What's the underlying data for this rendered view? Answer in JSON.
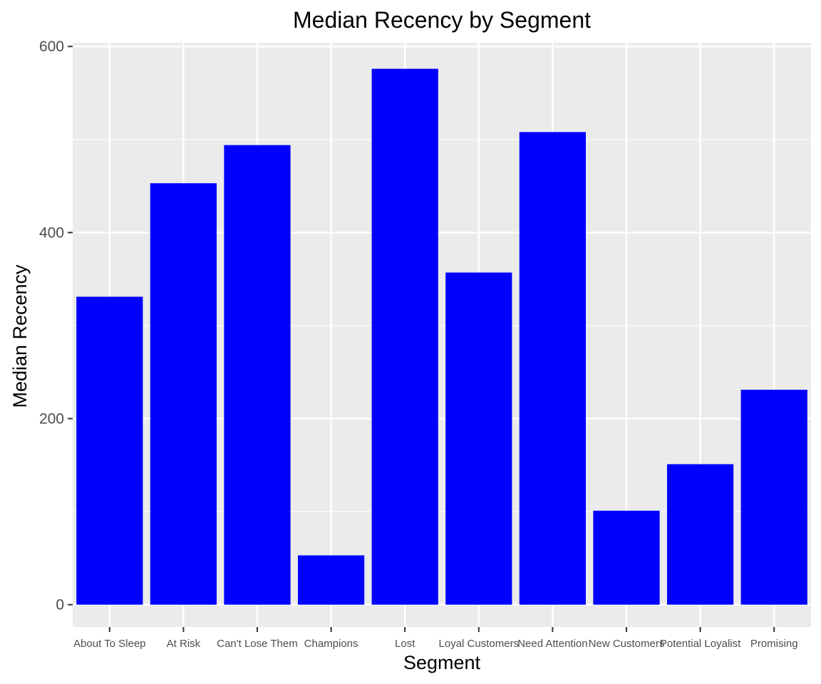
{
  "chart_data": {
    "type": "bar",
    "title": "Median Recency by Segment",
    "xlabel": "Segment",
    "ylabel": "Median Recency",
    "categories": [
      "About To Sleep",
      "At Risk",
      "Can't Lose Them",
      "Champions",
      "Lost",
      "Loyal Customers",
      "Need Attention",
      "New Customers",
      "Potential Loyalist",
      "Promising"
    ],
    "values": [
      331,
      453,
      494,
      53,
      576,
      357,
      508,
      101,
      151,
      231
    ],
    "ylim": [
      -24,
      604
    ],
    "yticks": [
      0,
      200,
      400,
      600
    ],
    "grid": true,
    "legend": "none",
    "colors": {
      "bar": "#0000ff",
      "panel": "#ebebeb",
      "grid": "#ffffff"
    }
  }
}
